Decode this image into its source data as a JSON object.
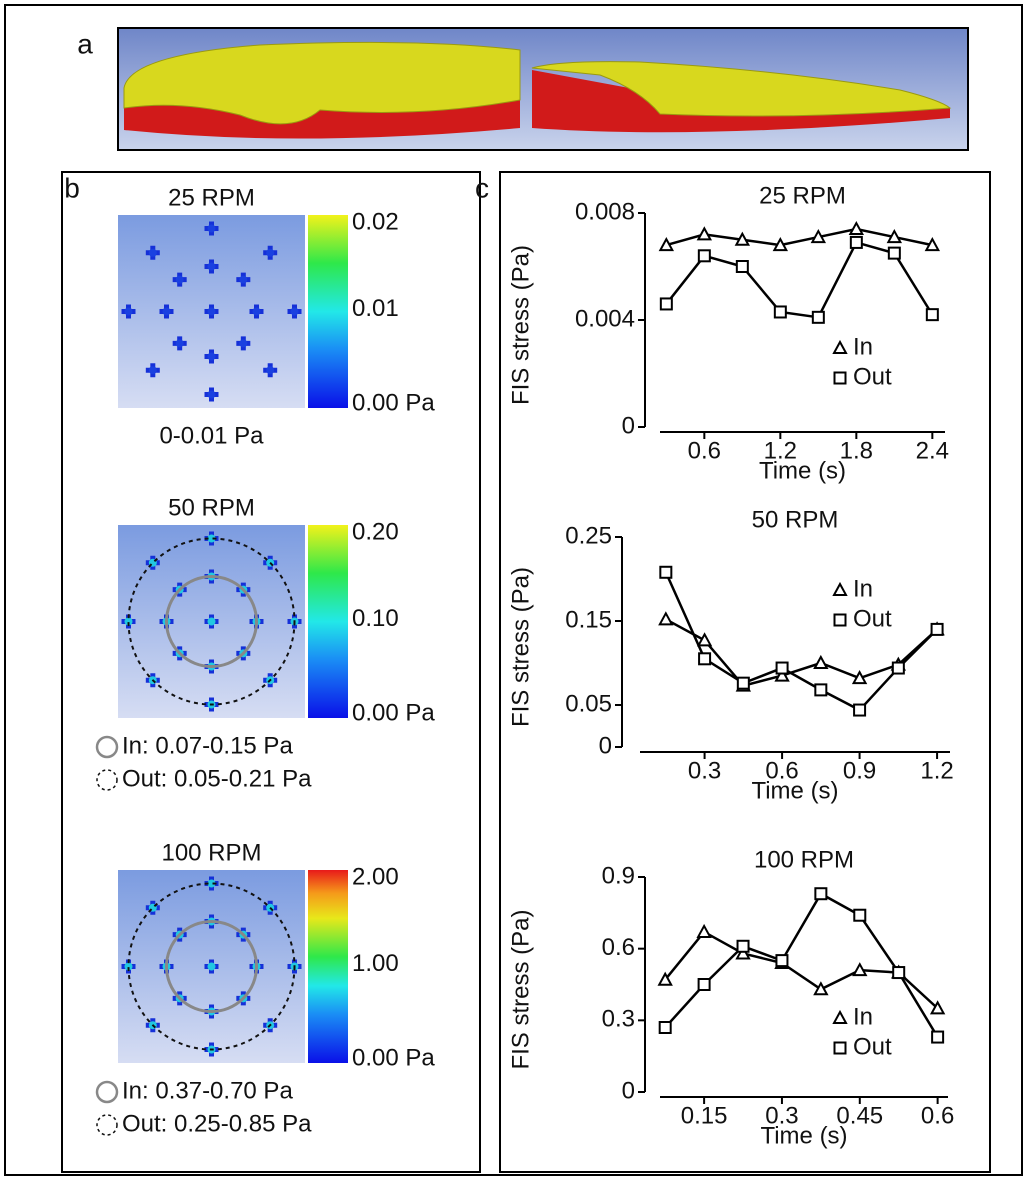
{
  "panel_labels": [
    "a",
    "b",
    "c"
  ],
  "panel_b": [
    {
      "title": "25 RPM",
      "colorbar": [
        "0.02",
        "0.01",
        "0.00 Pa"
      ],
      "notes": [
        "0-0.01 Pa"
      ]
    },
    {
      "title": "50 RPM",
      "colorbar": [
        "0.20",
        "0.10",
        "0.00 Pa"
      ],
      "notes": [
        "In: 0.07-0.15 Pa",
        "Out: 0.05-0.21 Pa"
      ]
    },
    {
      "title": "100 RPM",
      "colorbar": [
        "2.00",
        "1.00",
        "0.00 Pa"
      ],
      "notes": [
        "In: 0.37-0.70 Pa",
        "Out: 0.25-0.85 Pa"
      ]
    }
  ],
  "chart_data": [
    {
      "type": "line",
      "title": "25 RPM",
      "x_label": "Time (s)",
      "y_label": "FIS stress (Pa)",
      "x": [
        0.3,
        0.6,
        0.9,
        1.2,
        1.5,
        1.8,
        2.1,
        2.4
      ],
      "xlim": [
        0.25,
        2.5
      ],
      "xticks": [
        0.6,
        1.2,
        1.8,
        2.4
      ],
      "ylim": [
        0,
        0.008
      ],
      "yticks": [
        0,
        0.004,
        0.008
      ],
      "legend": "lower right",
      "series": [
        {
          "name": "In",
          "color": "#000000",
          "marker": "triangle",
          "values": [
            0.0068,
            0.0072,
            0.007,
            0.0068,
            0.0071,
            0.0074,
            0.0071,
            0.0068
          ]
        },
        {
          "name": "Out",
          "color": "#000000",
          "marker": "square",
          "values": [
            0.0046,
            0.0064,
            0.006,
            0.0043,
            0.0041,
            0.0069,
            0.0065,
            0.0042
          ]
        }
      ]
    },
    {
      "type": "line",
      "title": "50 RPM",
      "x_label": "Time (s)",
      "y_label": "FIS stress (Pa)",
      "x": [
        0.15,
        0.3,
        0.45,
        0.6,
        0.75,
        0.9,
        1.05,
        1.2
      ],
      "xlim": [
        0.05,
        1.25
      ],
      "xticks": [
        0.3,
        0.6,
        0.9,
        1.2
      ],
      "ylim": [
        0,
        0.25
      ],
      "yticks": [
        0,
        0.05,
        0.15,
        0.25
      ],
      "legend": "upper right",
      "series": [
        {
          "name": "In",
          "color": "#000000",
          "marker": "triangle",
          "values": [
            0.152,
            0.127,
            0.073,
            0.085,
            0.1,
            0.082,
            0.098,
            0.14
          ]
        },
        {
          "name": "Out",
          "color": "#000000",
          "marker": "square",
          "values": [
            0.208,
            0.105,
            0.076,
            0.094,
            0.068,
            0.044,
            0.094,
            0.14
          ]
        }
      ]
    },
    {
      "type": "line",
      "title": "100 RPM",
      "x_label": "Time (s)",
      "y_label": "FIS stress (Pa)",
      "x": [
        0.075,
        0.15,
        0.225,
        0.3,
        0.375,
        0.45,
        0.525,
        0.6
      ],
      "xlim": [
        0.065,
        0.62
      ],
      "xticks": [
        0.15,
        0.3,
        0.45,
        0.6
      ],
      "ylim": [
        0,
        0.9
      ],
      "yticks": [
        0,
        0.3,
        0.6,
        0.9
      ],
      "legend": "lower right",
      "series": [
        {
          "name": "In",
          "color": "#000000",
          "marker": "triangle",
          "values": [
            0.47,
            0.67,
            0.58,
            0.54,
            0.43,
            0.51,
            0.5,
            0.35
          ]
        },
        {
          "name": "Out",
          "color": "#000000",
          "marker": "square",
          "values": [
            0.27,
            0.45,
            0.61,
            0.55,
            0.83,
            0.74,
            0.5,
            0.23
          ]
        }
      ]
    }
  ]
}
